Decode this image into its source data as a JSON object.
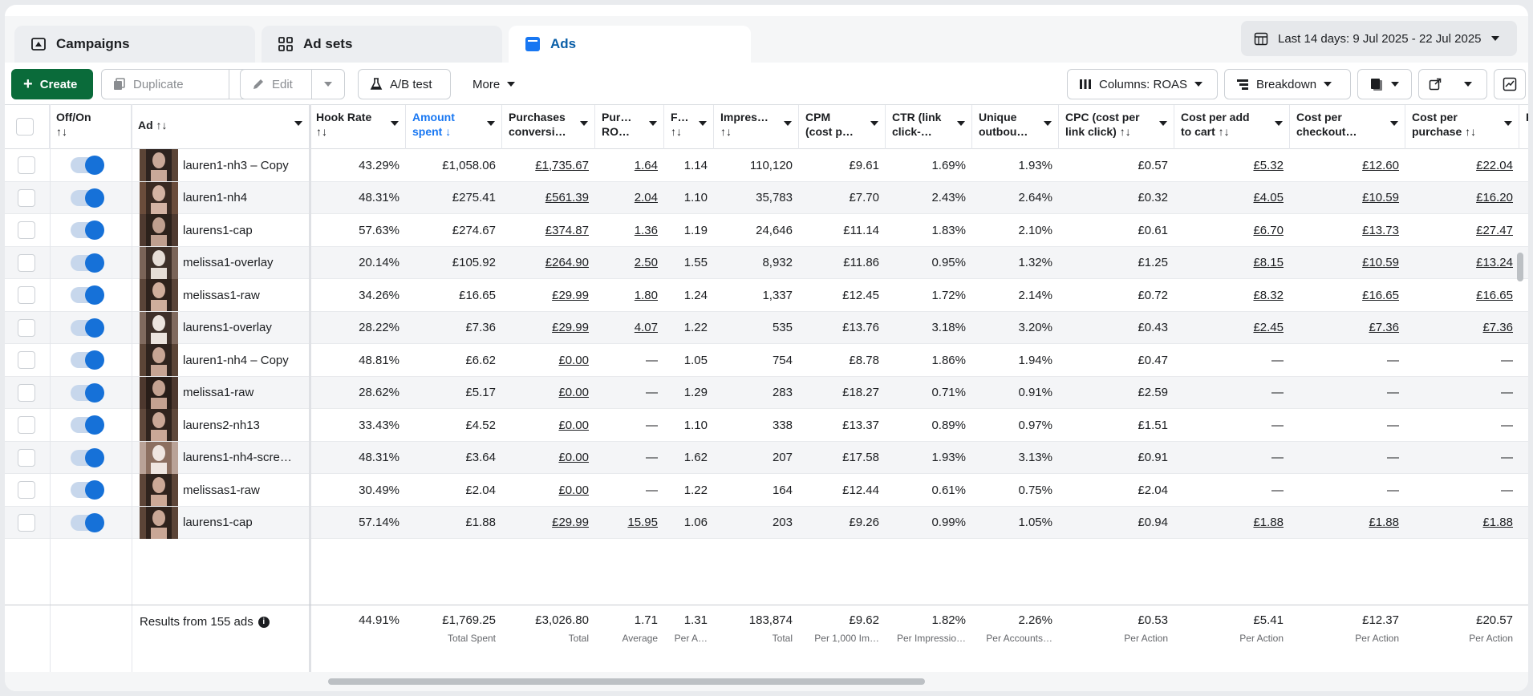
{
  "tabs": [
    {
      "label": "Campaigns",
      "icon": "campaign-icon"
    },
    {
      "label": "Ad sets",
      "icon": "adsets-grid-icon"
    },
    {
      "label": "Ads",
      "icon": "ads-icon"
    }
  ],
  "date_range": "Last 14 days: 9 Jul 2025 - 22 Jul 2025",
  "toolbar": {
    "create": "Create",
    "duplicate": "Duplicate",
    "edit": "Edit",
    "ab_test": "A/B test",
    "more": "More",
    "columns": "Columns: ROAS",
    "breakdown": "Breakdown"
  },
  "headers": {
    "offon": "Off/On\n↑↓",
    "ad": "Ad ↑↓",
    "hook_rate": "Hook Rate\n↑↓",
    "amount_spent": "Amount\nspent ↓",
    "purchases": "Purchases\nconversi…",
    "roas": "Pur…\nRO…",
    "freq": "F…\n↑↓",
    "impressions": "Impres…\n↑↓",
    "cpm": "CPM\n(cost p…",
    "ctr": "CTR (link\nclick-…",
    "unique": "Unique\noutbou…",
    "cpc": "CPC (cost per\nlink click) ↑↓",
    "cost_add_cart": "Cost per add\nto cart ↑↓",
    "cost_checkout": "Cost per\ncheckout…",
    "cost_purchase": "Cost per\npurchase ↑↓",
    "extra": "R"
  },
  "rows": [
    {
      "name": "lauren1-nh3 – Copy",
      "hook": "43.29%",
      "spent": "£1,058.06",
      "purch": "£1,735.67",
      "roas": "1.64",
      "freq": "1.14",
      "impr": "110,120",
      "cpm": "£9.61",
      "ctr": "1.69%",
      "uniq": "1.93%",
      "cpc": "£0.57",
      "cart": "£5.32",
      "checkout": "£12.60",
      "cpp": "£22.04"
    },
    {
      "name": "lauren1-nh4",
      "hook": "48.31%",
      "spent": "£275.41",
      "purch": "£561.39",
      "roas": "2.04",
      "freq": "1.10",
      "impr": "35,783",
      "cpm": "£7.70",
      "ctr": "2.43%",
      "uniq": "2.64%",
      "cpc": "£0.32",
      "cart": "£4.05",
      "checkout": "£10.59",
      "cpp": "£16.20"
    },
    {
      "name": "laurens1-cap",
      "hook": "57.63%",
      "spent": "£274.67",
      "purch": "£374.87",
      "roas": "1.36",
      "freq": "1.19",
      "impr": "24,646",
      "cpm": "£11.14",
      "ctr": "1.83%",
      "uniq": "2.10%",
      "cpc": "£0.61",
      "cart": "£6.70",
      "checkout": "£13.73",
      "cpp": "£27.47"
    },
    {
      "name": "melissa1-overlay",
      "hook": "20.14%",
      "spent": "£105.92",
      "purch": "£264.90",
      "roas": "2.50",
      "freq": "1.55",
      "impr": "8,932",
      "cpm": "£11.86",
      "ctr": "0.95%",
      "uniq": "1.32%",
      "cpc": "£1.25",
      "cart": "£8.15",
      "checkout": "£10.59",
      "cpp": "£13.24"
    },
    {
      "name": "melissas1-raw",
      "hook": "34.26%",
      "spent": "£16.65",
      "purch": "£29.99",
      "roas": "1.80",
      "freq": "1.24",
      "impr": "1,337",
      "cpm": "£12.45",
      "ctr": "1.72%",
      "uniq": "2.14%",
      "cpc": "£0.72",
      "cart": "£8.32",
      "checkout": "£16.65",
      "cpp": "£16.65"
    },
    {
      "name": "laurens1-overlay",
      "hook": "28.22%",
      "spent": "£7.36",
      "purch": "£29.99",
      "roas": "4.07",
      "freq": "1.22",
      "impr": "535",
      "cpm": "£13.76",
      "ctr": "3.18%",
      "uniq": "3.20%",
      "cpc": "£0.43",
      "cart": "£2.45",
      "checkout": "£7.36",
      "cpp": "£7.36"
    },
    {
      "name": "lauren1-nh4 – Copy",
      "hook": "48.81%",
      "spent": "£6.62",
      "purch": "£0.00",
      "roas": "—",
      "freq": "1.05",
      "impr": "754",
      "cpm": "£8.78",
      "ctr": "1.86%",
      "uniq": "1.94%",
      "cpc": "£0.47",
      "cart": "—",
      "checkout": "—",
      "cpp": "—"
    },
    {
      "name": "melissa1-raw",
      "hook": "28.62%",
      "spent": "£5.17",
      "purch": "£0.00",
      "roas": "—",
      "freq": "1.29",
      "impr": "283",
      "cpm": "£18.27",
      "ctr": "0.71%",
      "uniq": "0.91%",
      "cpc": "£2.59",
      "cart": "—",
      "checkout": "—",
      "cpp": "—"
    },
    {
      "name": "laurens2-nh13",
      "hook": "33.43%",
      "spent": "£4.52",
      "purch": "£0.00",
      "roas": "—",
      "freq": "1.10",
      "impr": "338",
      "cpm": "£13.37",
      "ctr": "0.89%",
      "uniq": "0.97%",
      "cpc": "£1.51",
      "cart": "—",
      "checkout": "—",
      "cpp": "—"
    },
    {
      "name": "laurens1-nh4-scre…",
      "hook": "48.31%",
      "spent": "£3.64",
      "purch": "£0.00",
      "roas": "—",
      "freq": "1.62",
      "impr": "207",
      "cpm": "£17.58",
      "ctr": "1.93%",
      "uniq": "3.13%",
      "cpc": "£0.91",
      "cart": "—",
      "checkout": "—",
      "cpp": "—"
    },
    {
      "name": "melissas1-raw",
      "hook": "30.49%",
      "spent": "£2.04",
      "purch": "£0.00",
      "roas": "—",
      "freq": "1.22",
      "impr": "164",
      "cpm": "£12.44",
      "ctr": "0.61%",
      "uniq": "0.75%",
      "cpc": "£2.04",
      "cart": "—",
      "checkout": "—",
      "cpp": "—"
    },
    {
      "name": "laurens1-cap",
      "hook": "57.14%",
      "spent": "£1.88",
      "purch": "£29.99",
      "roas": "15.95",
      "freq": "1.06",
      "impr": "203",
      "cpm": "£9.26",
      "ctr": "0.99%",
      "uniq": "1.05%",
      "cpc": "£0.94",
      "cart": "£1.88",
      "checkout": "£1.88",
      "cpp": "£1.88"
    }
  ],
  "footer": {
    "results": "Results from 155 ads",
    "hook": {
      "v": "44.91%",
      "s": ""
    },
    "spent": {
      "v": "£1,769.25",
      "s": "Total Spent"
    },
    "purch": {
      "v": "£3,026.80",
      "s": "Total"
    },
    "roas": {
      "v": "1.71",
      "s": "Average"
    },
    "freq": {
      "v": "1.31",
      "s": "Per A…"
    },
    "impr": {
      "v": "183,874",
      "s": "Total"
    },
    "cpm": {
      "v": "£9.62",
      "s": "Per 1,000 Im…"
    },
    "ctr": {
      "v": "1.82%",
      "s": "Per Impressio…"
    },
    "uniq": {
      "v": "2.26%",
      "s": "Per Accounts…"
    },
    "cpc": {
      "v": "£0.53",
      "s": "Per Action"
    },
    "cart": {
      "v": "£5.41",
      "s": "Per Action"
    },
    "checkout": {
      "v": "£12.37",
      "s": "Per Action"
    },
    "cpp": {
      "v": "£20.57",
      "s": "Per Action"
    }
  },
  "colors": {
    "accent": "#1877f2",
    "create": "#0a6b3a",
    "toggle": "#1671d8",
    "active_tab": "#0a5fa8"
  }
}
